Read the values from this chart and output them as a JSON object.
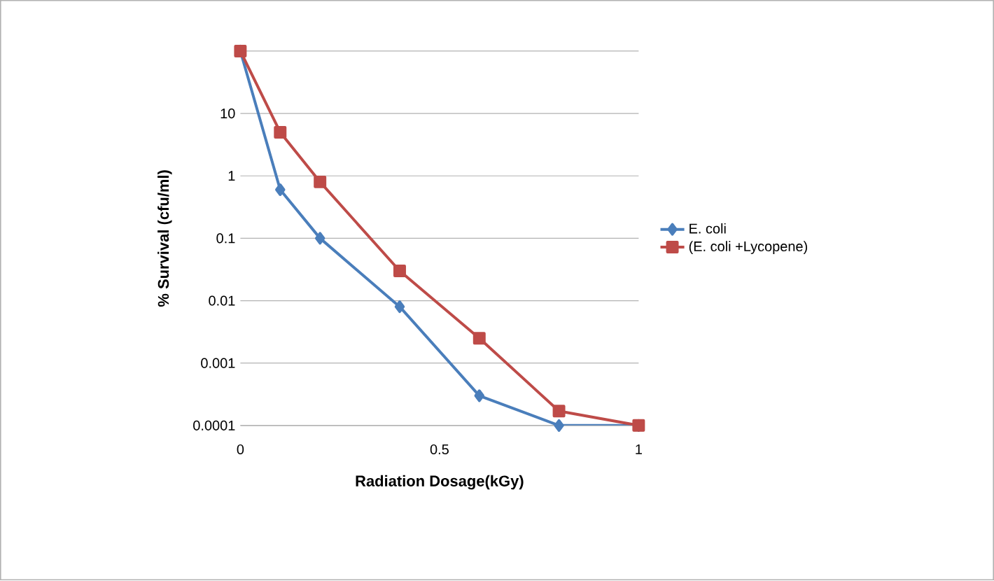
{
  "chart_data": {
    "type": "line",
    "xlabel": "Radiation Dosage(kGy)",
    "ylabel": "% Survival (cfu/ml)",
    "log": "y",
    "xlim": [
      0,
      1
    ],
    "xticks": [
      0,
      0.5,
      1
    ],
    "ylim": [
      0.0001,
      100
    ],
    "yticks": [
      0.0001,
      0.001,
      0.01,
      0.1,
      1,
      10,
      {
        "value": 100,
        "label": null
      }
    ],
    "grid": "y",
    "legend": "right",
    "series": [
      {
        "name": "E. coli",
        "color": "#4a7ebb",
        "marker": "diamond",
        "x": [
          0,
          0.1,
          0.2,
          0.4,
          0.6,
          0.8,
          1
        ],
        "values": [
          100,
          0.6,
          0.1,
          0.008,
          0.0003,
          0.0001,
          0.0001
        ]
      },
      {
        "name": "(E. coli +Lycopene)",
        "color": "#be4b48",
        "marker": "square",
        "x": [
          0,
          0.1,
          0.2,
          0.4,
          0.6,
          0.8,
          1
        ],
        "values": [
          100,
          5,
          0.8,
          0.03,
          0.0025,
          0.00017,
          0.0001
        ]
      }
    ]
  }
}
